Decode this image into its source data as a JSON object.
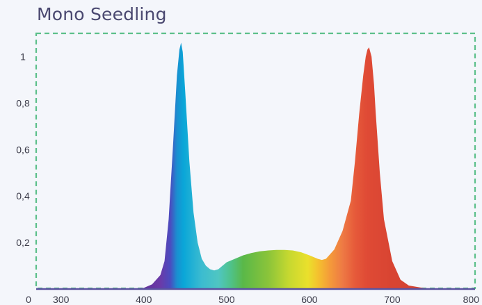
{
  "chart_data": {
    "type": "area",
    "title": "Mono Seedling",
    "xlabel": "",
    "ylabel": "",
    "xlim": [
      270,
      800
    ],
    "ylim": [
      0,
      1.1
    ],
    "x_ticks": [
      300,
      400,
      500,
      600,
      700,
      800
    ],
    "x_tick_labels": [
      "300",
      "400",
      "500",
      "600",
      "700",
      "800"
    ],
    "x_origin_label": "0",
    "y_ticks": [
      0.2,
      0.4,
      0.6,
      0.8,
      1.0
    ],
    "y_tick_labels": [
      "0,2",
      "0,4",
      "0,6",
      "0,8",
      "1"
    ],
    "grid": false,
    "legend": "none",
    "colors": {
      "frame": "#5cc08a",
      "baseline": "#5a52a0",
      "title": "#4a4870"
    },
    "series": [
      {
        "x": [
          270,
          380,
          400,
          410,
          420,
          425,
          430,
          435,
          440,
          443,
          445,
          447,
          450,
          455,
          460,
          465,
          470,
          475,
          480,
          485,
          490,
          495,
          500,
          510,
          520,
          530,
          540,
          550,
          560,
          570,
          580,
          590,
          600,
          610,
          615,
          620,
          630,
          640,
          650,
          655,
          660,
          665,
          668,
          670,
          672,
          675,
          678,
          680,
          685,
          690,
          700,
          710,
          720,
          740,
          800
        ],
        "y": [
          0,
          0,
          0.005,
          0.02,
          0.06,
          0.12,
          0.3,
          0.6,
          0.92,
          1.03,
          1.06,
          1.02,
          0.85,
          0.55,
          0.33,
          0.2,
          0.13,
          0.1,
          0.085,
          0.08,
          0.085,
          0.1,
          0.115,
          0.13,
          0.145,
          0.155,
          0.162,
          0.166,
          0.168,
          0.168,
          0.166,
          0.158,
          0.145,
          0.13,
          0.125,
          0.13,
          0.17,
          0.25,
          0.38,
          0.55,
          0.75,
          0.92,
          1.0,
          1.03,
          1.04,
          1.0,
          0.88,
          0.76,
          0.5,
          0.3,
          0.12,
          0.04,
          0.015,
          0.003,
          0
        ]
      }
    ]
  }
}
